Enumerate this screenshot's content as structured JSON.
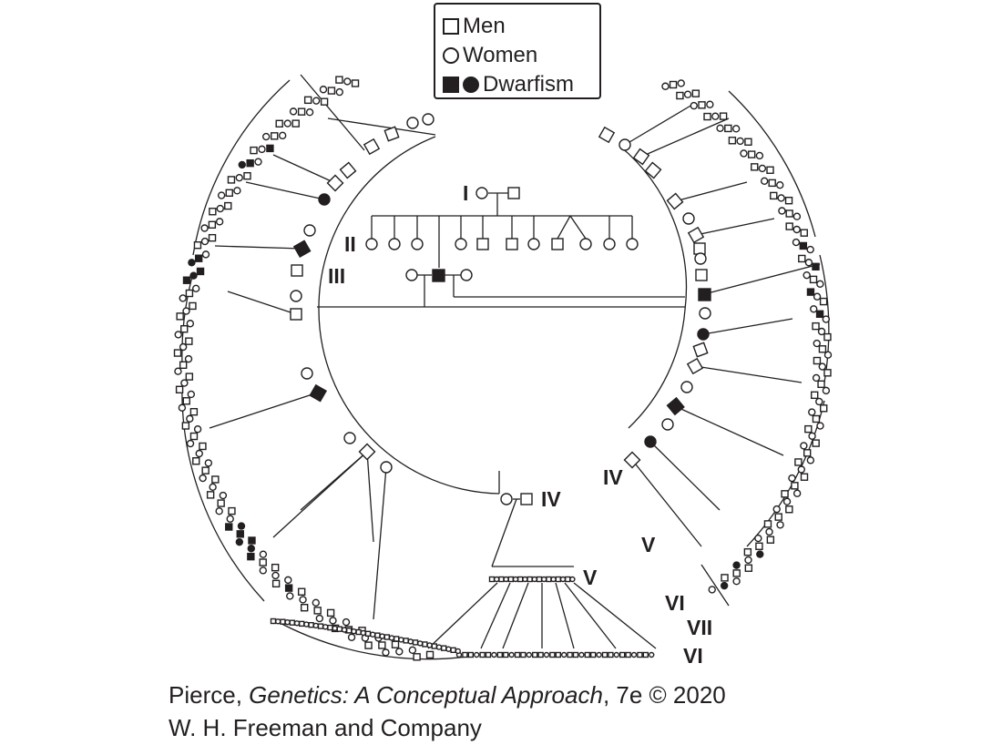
{
  "legend": {
    "men_label": "Men",
    "women_label": "Women",
    "dwarfism_label": "Dwarfism"
  },
  "generations": {
    "g1": "I",
    "g2": "II",
    "g3": "III",
    "g4_left": "IV",
    "g4_right": "IV",
    "g5_bottom": "V",
    "g5_right": "V",
    "g6_bottom": "VI",
    "g6_right": "VI",
    "g7": "VII"
  },
  "caption": {
    "author": "Pierce, ",
    "book_title": "Genetics: A Conceptual Approach",
    "edition": ", 7e © 2020",
    "publisher": "W. H. Freeman and Company"
  },
  "colors": {
    "ink": "#231f20",
    "background": "#ffffff"
  },
  "symbols": {
    "men": "open-square",
    "women": "open-circle",
    "affected": "filled-symbol"
  }
}
